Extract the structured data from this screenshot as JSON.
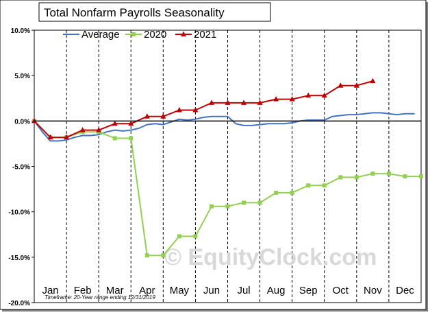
{
  "chart_data": {
    "type": "line",
    "title": "Total Nonfarm Payrolls Seasonality",
    "xlabel": "",
    "ylabel": "",
    "ylim": [
      -20,
      10
    ],
    "xlim": [
      0,
      12
    ],
    "x_ticks": [
      0,
      1,
      2,
      3,
      4,
      5,
      6,
      7,
      8,
      9,
      10,
      11
    ],
    "x_tick_labels": [
      "Jan",
      "Feb",
      "Mar",
      "Apr",
      "May",
      "Jun",
      "Jul",
      "Aug",
      "Sep",
      "Oct",
      "Nov",
      "Dec"
    ],
    "y_ticks": [
      -20,
      -15,
      -10,
      -5,
      0,
      5,
      10
    ],
    "y_tick_labels": [
      "-20.0%",
      "-15.0%",
      "-10.0%",
      "-5.0%",
      "0.0%",
      "5.0%",
      "10.0%"
    ],
    "grid": "vertical dashed",
    "legend_position": "top-left",
    "series": [
      {
        "name": "Average",
        "color": "#4472c4",
        "marker": "none",
        "x": [
          0,
          0.25,
          0.5,
          0.75,
          1,
          1.25,
          1.5,
          1.75,
          2,
          2.25,
          2.5,
          2.75,
          3,
          3.25,
          3.5,
          3.75,
          4,
          4.25,
          4.5,
          4.75,
          5,
          5.25,
          5.5,
          5.75,
          6,
          6.25,
          6.5,
          6.75,
          7,
          7.25,
          7.5,
          7.75,
          8,
          8.25,
          8.5,
          8.75,
          9,
          9.25,
          9.5,
          9.75,
          10,
          10.25,
          10.5,
          10.75,
          11,
          11.25,
          11.5,
          11.8
        ],
        "values": [
          0,
          -1.2,
          -2.2,
          -2.2,
          -2.1,
          -1.8,
          -1.6,
          -1.6,
          -1.5,
          -1.2,
          -1.0,
          -1.1,
          -1.0,
          -0.8,
          -0.4,
          -0.3,
          -0.4,
          -0.1,
          0.2,
          0.1,
          0.2,
          0.4,
          0.5,
          0.5,
          0.5,
          -0.3,
          -0.5,
          -0.5,
          -0.4,
          -0.3,
          -0.3,
          -0.3,
          -0.2,
          0.0,
          0.1,
          0.1,
          0.1,
          0.5,
          0.6,
          0.7,
          0.7,
          0.8,
          0.9,
          0.9,
          0.8,
          0.7,
          0.8,
          0.8
        ]
      },
      {
        "name": "2020",
        "color": "#92d050",
        "marker": "square",
        "x": [
          0,
          0.5,
          1,
          1.5,
          2,
          2.5,
          3,
          3.5,
          4,
          4.5,
          5,
          5.5,
          6,
          6.5,
          7,
          7.5,
          8,
          8.5,
          9,
          9.5,
          10,
          10.5,
          11,
          11.5,
          12
        ],
        "values": [
          0,
          -1.8,
          -1.8,
          -1.2,
          -1.2,
          -1.9,
          -1.9,
          -14.8,
          -14.8,
          -12.7,
          -12.7,
          -9.4,
          -9.4,
          -9.0,
          -9.0,
          -7.9,
          -7.9,
          -7.1,
          -7.1,
          -6.2,
          -6.2,
          -5.8,
          -5.8,
          -6.1,
          -6.1
        ]
      },
      {
        "name": "2021",
        "color": "#c00000",
        "marker": "triangle",
        "x": [
          0,
          0.5,
          1,
          1.5,
          2,
          2.5,
          3,
          3.5,
          4,
          4.5,
          5,
          5.5,
          6,
          6.5,
          7,
          7.5,
          8,
          8.5,
          9,
          9.5,
          10,
          10.5
        ],
        "values": [
          0,
          -1.8,
          -1.8,
          -1.0,
          -1.0,
          -0.3,
          -0.3,
          0.5,
          0.5,
          1.2,
          1.2,
          2.0,
          2.0,
          2.0,
          2.0,
          2.4,
          2.4,
          2.8,
          2.8,
          3.9,
          3.9,
          4.4
        ]
      }
    ],
    "annotations": {
      "footnote": "Timeframe: 20-Year range ending 12/31/2019",
      "watermark": "© EquityClock.com"
    }
  }
}
